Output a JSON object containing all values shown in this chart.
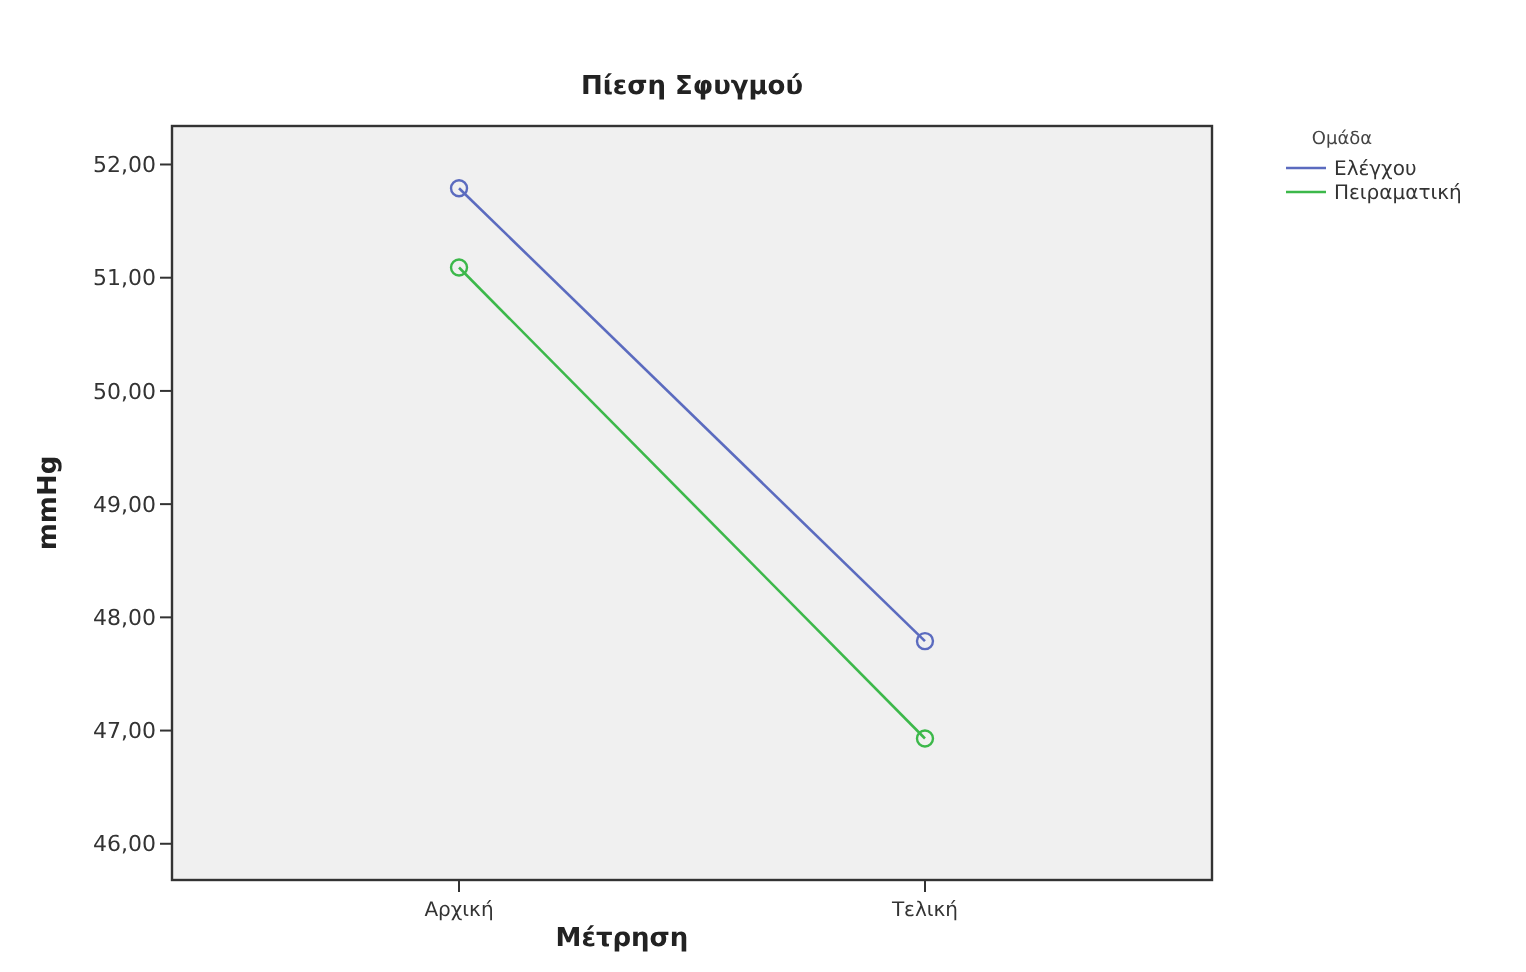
{
  "chart_data": {
    "type": "line",
    "title": "Πίεση Σφυγμού",
    "xlabel": "Μέτρηση",
    "ylabel": "mmHg",
    "legend_title": "Ομάδα",
    "categories": [
      "Αρχική",
      "Τελική"
    ],
    "series": [
      {
        "name": "Ελέγχου",
        "color": "#5b6bbf",
        "values": [
          51.79,
          47.79
        ]
      },
      {
        "name": "Πειραματική",
        "color": "#3cb84a",
        "values": [
          51.09,
          46.93
        ]
      }
    ],
    "ylim": [
      45.68,
      52.34
    ],
    "yticks": [
      {
        "value": 46,
        "label": "46,00"
      },
      {
        "value": 47,
        "label": "47,00"
      },
      {
        "value": 48,
        "label": "48,00"
      },
      {
        "value": 49,
        "label": "49,00"
      },
      {
        "value": 50,
        "label": "50,00"
      },
      {
        "value": 51,
        "label": "51,00"
      },
      {
        "value": 52,
        "label": "52,00"
      }
    ],
    "grid": false,
    "legend": "top right",
    "marker": "circle",
    "line_style": "solid"
  }
}
